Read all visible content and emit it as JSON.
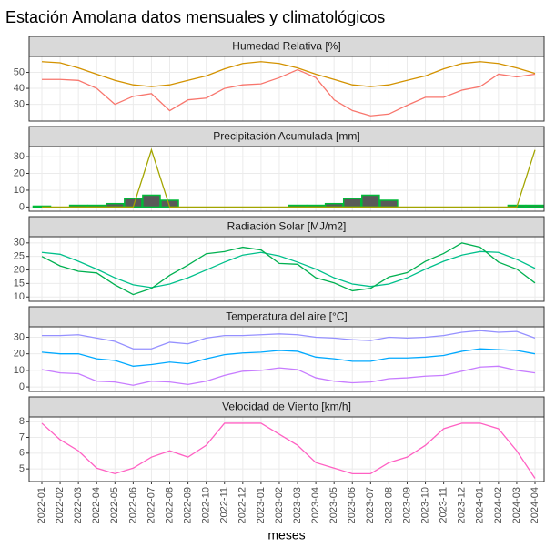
{
  "title": "Estación Amolana datos mensuales y climatológicos",
  "xlabel": "meses",
  "chart_data": [
    {
      "type": "line",
      "title": "Humedad Relativa [%]",
      "x": [
        "2022-01",
        "2022-02",
        "2022-03",
        "2022-04",
        "2022-05",
        "2022-06",
        "2022-07",
        "2022-08",
        "2022-09",
        "2022-10",
        "2022-11",
        "2022-12",
        "2023-01",
        "2023-02",
        "2023-03",
        "2023-04",
        "2023-05",
        "2023-06",
        "2023-07",
        "2023-08",
        "2023-09",
        "2023-10",
        "2023-11",
        "2023-12",
        "2024-01",
        "2024-02",
        "2024-03",
        "2024-04"
      ],
      "ylim": [
        19.5,
        60
      ],
      "yticks": [
        30,
        40,
        50
      ],
      "grid": true,
      "series": [
        {
          "color": "#D39200",
          "values": [
            56.7,
            56,
            52.8,
            48.9,
            45,
            42.2,
            41.1,
            42.2,
            45,
            47.8,
            52.2,
            55.6,
            56.7,
            55.6,
            52.8,
            48.9,
            45.6,
            42.2,
            41.1,
            42.2,
            45,
            47.8,
            52.2,
            55.6,
            56.7,
            55.6,
            52.8,
            49.4
          ]
        },
        {
          "color": "#F8766D",
          "values": [
            45.6,
            45.6,
            45,
            40,
            30,
            35,
            36.7,
            26,
            32.8,
            33.9,
            40,
            42.2,
            42.8,
            46.7,
            51.7,
            46.7,
            32.8,
            26.1,
            22.8,
            23.9,
            29.4,
            34.4,
            34.4,
            38.9,
            41.1,
            48.9,
            47.2,
            48.9
          ]
        }
      ]
    },
    {
      "type": "line",
      "title": "Precipitación Acumulada [mm]",
      "x": [
        "2022-01",
        "2022-02",
        "2022-03",
        "2022-04",
        "2022-05",
        "2022-06",
        "2022-07",
        "2022-08",
        "2022-09",
        "2022-10",
        "2022-11",
        "2022-12",
        "2023-01",
        "2023-02",
        "2023-03",
        "2023-04",
        "2023-05",
        "2023-06",
        "2023-07",
        "2023-08",
        "2023-09",
        "2023-10",
        "2023-11",
        "2023-12",
        "2024-01",
        "2024-02",
        "2024-03",
        "2024-04"
      ],
      "ylim": [
        -2.5,
        36
      ],
      "yticks": [
        0,
        10,
        20,
        30
      ],
      "grid": true,
      "series": [
        {
          "type": "bar",
          "color": "#00BA38",
          "fill": "#595959",
          "values": [
            0.5,
            0,
            1,
            1,
            2,
            5,
            7,
            4,
            0,
            0,
            0,
            0,
            0,
            0,
            1,
            1,
            2,
            5,
            7,
            4,
            0,
            0,
            0,
            0,
            0,
            0,
            1,
            1
          ]
        },
        {
          "color": "#A3A500",
          "values": [
            0,
            0,
            0,
            0,
            0,
            0,
            34,
            0,
            0,
            0,
            0,
            0,
            0,
            0,
            0,
            0,
            0,
            0,
            0,
            0,
            0,
            0,
            0,
            0,
            0,
            0,
            0,
            34
          ]
        }
      ]
    },
    {
      "type": "line",
      "title": "Radiación Solar [MJ/m2]",
      "x": [
        "2022-01",
        "2022-02",
        "2022-03",
        "2022-04",
        "2022-05",
        "2022-06",
        "2022-07",
        "2022-08",
        "2022-09",
        "2022-10",
        "2022-11",
        "2022-12",
        "2023-01",
        "2023-02",
        "2023-03",
        "2023-04",
        "2023-05",
        "2023-06",
        "2023-07",
        "2023-08",
        "2023-09",
        "2023-10",
        "2023-11",
        "2023-12",
        "2024-01",
        "2024-02",
        "2024-03",
        "2024-04"
      ],
      "ylim": [
        8.4,
        32.3
      ],
      "yticks": [
        10,
        15,
        20,
        25,
        30
      ],
      "grid": true,
      "series": [
        {
          "color": "#00C08B",
          "values": [
            26.5,
            25.8,
            23.2,
            20.3,
            17.1,
            14.5,
            13.5,
            14.8,
            17.1,
            20,
            22.9,
            25.5,
            26.5,
            25.2,
            22.9,
            20.3,
            17.1,
            14.8,
            13.9,
            14.8,
            17.1,
            20.3,
            23.2,
            25.5,
            26.8,
            26.5,
            23.9,
            20.6
          ]
        },
        {
          "color": "#00B050",
          "values": [
            25,
            21.5,
            19.5,
            18.9,
            14.5,
            10.9,
            13.2,
            18,
            21.8,
            26,
            26.8,
            28.4,
            27.4,
            22.4,
            22.1,
            17.1,
            15.2,
            12.3,
            13.2,
            17.4,
            19,
            23.2,
            26.1,
            30,
            28.4,
            22.9,
            20.3,
            15.2
          ]
        }
      ]
    },
    {
      "type": "line",
      "title": "Temperatura del aire [°C]",
      "x": [
        "2022-01",
        "2022-02",
        "2022-03",
        "2022-04",
        "2022-05",
        "2022-06",
        "2022-07",
        "2022-08",
        "2022-09",
        "2022-10",
        "2022-11",
        "2022-12",
        "2023-01",
        "2023-02",
        "2023-03",
        "2023-04",
        "2023-05",
        "2023-06",
        "2023-07",
        "2023-08",
        "2023-09",
        "2023-10",
        "2023-11",
        "2023-12",
        "2024-01",
        "2024-02",
        "2024-03",
        "2024-04"
      ],
      "ylim": [
        -2.7,
        36.3
      ],
      "yticks": [
        0,
        10,
        20,
        30
      ],
      "grid": true,
      "series": [
        {
          "color": "#9590FF",
          "values": [
            31,
            31,
            31.5,
            29.5,
            27.5,
            23,
            23,
            27,
            26,
            29.5,
            31,
            31,
            31.5,
            32,
            31.5,
            30,
            29.5,
            28.5,
            28,
            30,
            29.5,
            30,
            31,
            33,
            34,
            33,
            33.5,
            29.5
          ]
        },
        {
          "color": "#00A9FF",
          "values": [
            21,
            20,
            20,
            17,
            16,
            12.5,
            13.5,
            15,
            14,
            17,
            19.5,
            20.5,
            21,
            22,
            21.5,
            18,
            17,
            15.5,
            15.5,
            17.5,
            17.5,
            18,
            19,
            21.5,
            23,
            22.5,
            22,
            20
          ]
        },
        {
          "color": "#C77CFF",
          "values": [
            10.5,
            8.5,
            8,
            3.5,
            3,
            1,
            3.5,
            3,
            1.5,
            3.5,
            7,
            9.5,
            10,
            11.5,
            10.5,
            5.5,
            3.5,
            2.5,
            3,
            5,
            5.5,
            6.5,
            7,
            9.5,
            12,
            12.5,
            10,
            8.5
          ]
        }
      ]
    },
    {
      "type": "line",
      "title": "Velocidad de Viento [km/h]",
      "x": [
        "2022-01",
        "2022-02",
        "2022-03",
        "2022-04",
        "2022-05",
        "2022-06",
        "2022-07",
        "2022-08",
        "2022-09",
        "2022-10",
        "2022-11",
        "2022-12",
        "2023-01",
        "2023-02",
        "2023-03",
        "2023-04",
        "2023-05",
        "2023-06",
        "2023-07",
        "2023-08",
        "2023-09",
        "2023-10",
        "2023-11",
        "2023-12",
        "2024-01",
        "2024-02",
        "2024-03",
        "2024-04"
      ],
      "ylim": [
        4.2,
        8.3
      ],
      "yticks": [
        5,
        6,
        7,
        8
      ],
      "grid": true,
      "series": [
        {
          "color": "#FF61C3",
          "values": [
            7.9,
            6.85,
            6.15,
            5.05,
            4.7,
            5.05,
            5.75,
            6.15,
            5.75,
            6.5,
            7.9,
            7.9,
            7.9,
            7.2,
            6.5,
            5.4,
            5.05,
            4.7,
            4.7,
            5.4,
            5.75,
            6.5,
            7.55,
            7.9,
            7.9,
            7.55,
            6.15,
            4.4
          ]
        }
      ]
    }
  ]
}
